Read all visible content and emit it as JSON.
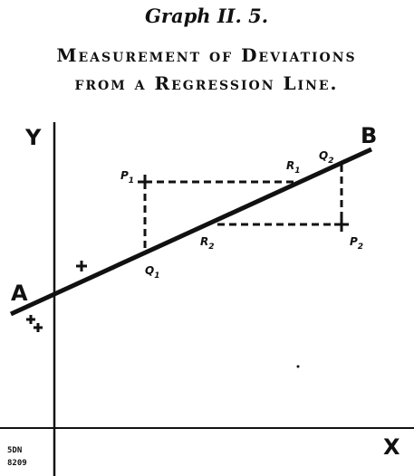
{
  "header": {
    "title": "Graph II. 5.",
    "subtitle": [
      "Measurement of Deviations",
      "from a Regression Line."
    ]
  },
  "axes": {
    "y": "Y",
    "x": "X"
  },
  "line_ends": {
    "start": "A",
    "end": "B"
  },
  "points": [
    {
      "letter": "P",
      "sub": "1"
    },
    {
      "letter": "P",
      "sub": "2"
    },
    {
      "letter": "Q",
      "sub": "1"
    },
    {
      "letter": "Q",
      "sub": "2"
    },
    {
      "letter": "R",
      "sub": "1"
    },
    {
      "letter": "R",
      "sub": "2"
    }
  ],
  "code": [
    "5DN",
    "8209"
  ]
}
